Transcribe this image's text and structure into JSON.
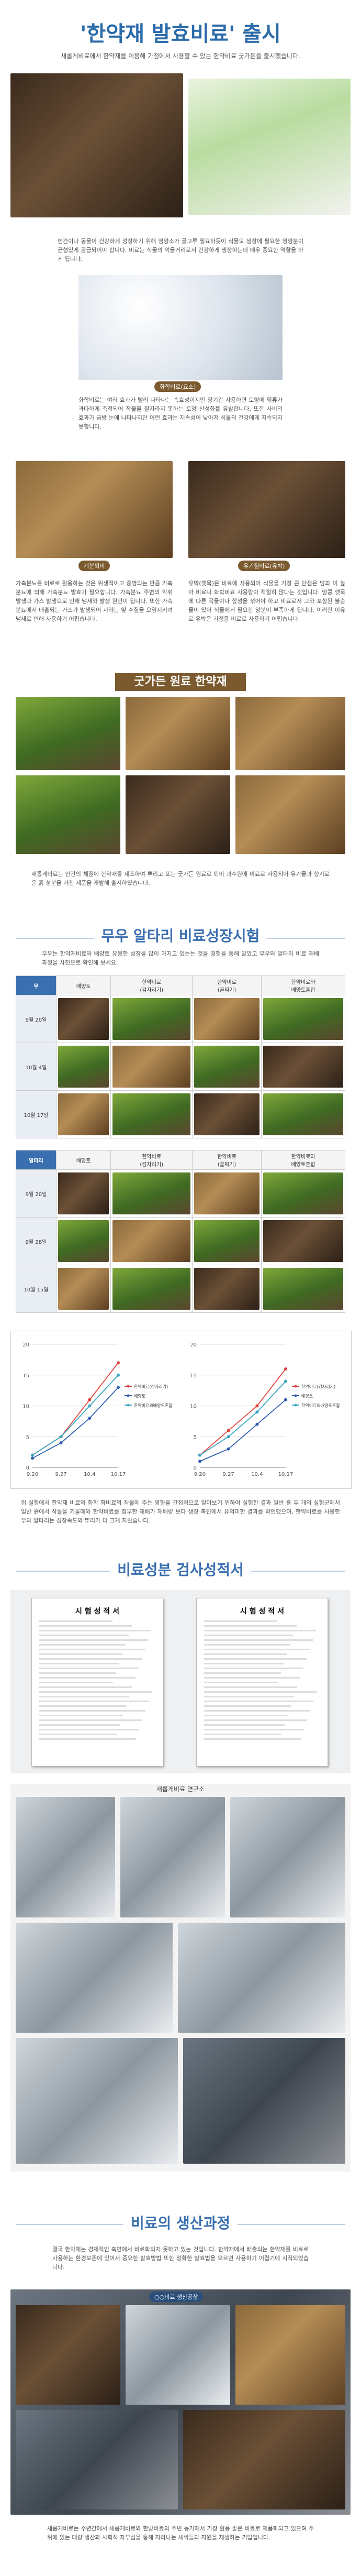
{
  "header": {
    "title": "'한약재 발효비료' 출시",
    "subtitle": "새롭게비료에서 한약재를 이용해 가정에서 사용할 수 있는 한약비료 굿가든을 출시했습니다."
  },
  "intro": "인간이나 동물이 건강하게 성장하기 위해 영양소가 골고루 필요하듯이 식물도 생장에 필요한 영양분이 균형있게 공급되어야 합니다. 비료는 식물의 먹을거리로서 건강하게 생장하는데 매우 중요한 역할을 하게 됩니다.",
  "chem": {
    "label": "화학비료(요소)",
    "text": "화학비료는 여러 효과가 빨리 나타나는 속효성이지만 장기간 사용하면 토양에 염류가 과다하게 축적되어 작물을 잘자라지 못하는 토양 산성화를 유발합니다. 또한 사비의 효과가 금방 눈에 나타나지만 이런 효과는 지속성이 낮아져 식물의 건강에게 지속되지 못합니다."
  },
  "organic": {
    "labels": [
      "계분퇴비",
      "유기질비료(유박)"
    ],
    "texts": [
      "가축분뇨를 비료로 활용하는 것은 위생적이고 증명되는 만큼 가축분뇨에 의해 가축분뇨 발효가 필요합니다. 가축분뇨 주변의 악취 발생과 가스 발생으로 인해 냄새와 발생 원인이 됩니다. 또한 가축분뇨에서 배출되는 가스가 발생되어 자라는 잎 수질을 오염시키며 냄새로 인해 사용하기 어렵습니다.",
      "유박(깻묵)은 비료에 사용되어 식물을 가장 큰 단점은 땅과 이 높아 비료나 화학비료 사용량이 적절히 많다는 것입니다. 땅콩 깻묵에 다른 곡물이나 합성을 섞어야 하고 비료로서 그와 포함된 불순물이 있어 식물에게 필요한 양분이 부족하게 됩니다. 이러한 이유로 유박은 가정용 비료로 사용하기 어렵습니다."
    ]
  },
  "materials": {
    "banner": "굿가든 원료 한약재",
    "text": "새롭게비료는 인간의 체질에 한약재를 제조하여 뿌리고 또는 굿가든 원료로 퇴비 과수원에 비료로 사용되어 유기물과 향기로운 흙 성분을 가진 제품을 개발해 출시하였습니다."
  },
  "test": {
    "title": "무우 알타리 비료성장시험",
    "text": "무우는 한약재비료와 배양토 유용한 성장을 많이 가지고 있는는 것을 경험을 통해 알았고 무우와 알타리 비료 재배 과정을 사진으로 확인해 보세요.",
    "tables": [
      {
        "crop": "무",
        "columns": [
          "배양토",
          "한약비료\n(감자리기)",
          "한약비료\n(골짜기)",
          "한약비료와\n배양토혼합"
        ],
        "rows": [
          "9월 20일",
          "10월 4일",
          "10월 17일"
        ]
      },
      {
        "crop": "알타리",
        "columns": [
          "배양토",
          "한약비료\n(감자리기)",
          "한약비료\n(골짜기)",
          "한약비료와\n배양토혼합"
        ],
        "rows": [
          "9월 20일",
          "9월 28일",
          "10월 15일"
        ]
      }
    ],
    "note": "위 실험에서 한약재 비료와 화학 화비료의 작물에 주는 영향을 간접적으로 알아보기 위하여 실험한 결과 일반 흙 두 개의 실험군에서 일반 흙에서 작물을 키울때와 한약비료를 첨부한 재배가 재배량 보다 생장 촉진에서 유의미한 결과를 확인했으며, 한약비료를 사용한 무와 알타리는 성장속도와 뿌리가 더 크게 자랐습니다."
  },
  "chart_data": [
    {
      "type": "line",
      "categories": [
        "9.20",
        "9.27",
        "10.4",
        "10.17"
      ],
      "ylim": [
        0,
        20
      ],
      "yticks": [
        0,
        5,
        10,
        15,
        20
      ],
      "grid": true,
      "legend": "right",
      "series": [
        {
          "name": "한약비료(감자리기)",
          "color": "#e0403a",
          "values": [
            2,
            5,
            11,
            17
          ]
        },
        {
          "name": "배양토",
          "color": "#2f5fb3",
          "values": [
            1.5,
            4,
            8,
            13
          ]
        },
        {
          "name": "한약비료와배양토혼합",
          "color": "#3aa6c0",
          "values": [
            2,
            5,
            10,
            15
          ]
        }
      ]
    },
    {
      "type": "line",
      "categories": [
        "9.20",
        "9.27",
        "10.4",
        "10.17"
      ],
      "ylim": [
        0,
        20
      ],
      "yticks": [
        0,
        5,
        10,
        15,
        20
      ],
      "grid": true,
      "legend": "right",
      "series": [
        {
          "name": "한약비료(감자리기)",
          "color": "#e0403a",
          "values": [
            2,
            6,
            10,
            16
          ]
        },
        {
          "name": "배양토",
          "color": "#2f5fb3",
          "values": [
            1,
            3,
            7,
            11
          ]
        },
        {
          "name": "한약비료와배양토혼합",
          "color": "#3aa6c0",
          "values": [
            2,
            5,
            9,
            14
          ]
        }
      ]
    }
  ],
  "certificate": {
    "title": "비료성분 검사성적서",
    "docs": [
      "시 험 성 적 서",
      "시 험 성 적 서"
    ]
  },
  "lab": {
    "label": "새롭게비료 연구소"
  },
  "production": {
    "title": "비료의 생산과정",
    "text": "결국 한약재는 경제적인 측면에서 비료화되지 못하고 있는 것입니다. 한약재에서 배출되는 한약재를 비료로 사용하는 환경보존에 있어서 중요한 발효방법 또한 정확한 발효법을 모르면 사용하기 어렵기에 시작되었습니다.",
    "label": "○○비료 생산공장",
    "closing": "새롭게비료는 수년간에서 새롭게비료와 한방비료의 주변 농가에서 가장 활용 좋은 비료로 제품화되고 있으며 주위에 있는 대량 생산과 사회적 자부심을 통해 자라나는 새싹들과 자원을 재생하는 기업입니다."
  }
}
